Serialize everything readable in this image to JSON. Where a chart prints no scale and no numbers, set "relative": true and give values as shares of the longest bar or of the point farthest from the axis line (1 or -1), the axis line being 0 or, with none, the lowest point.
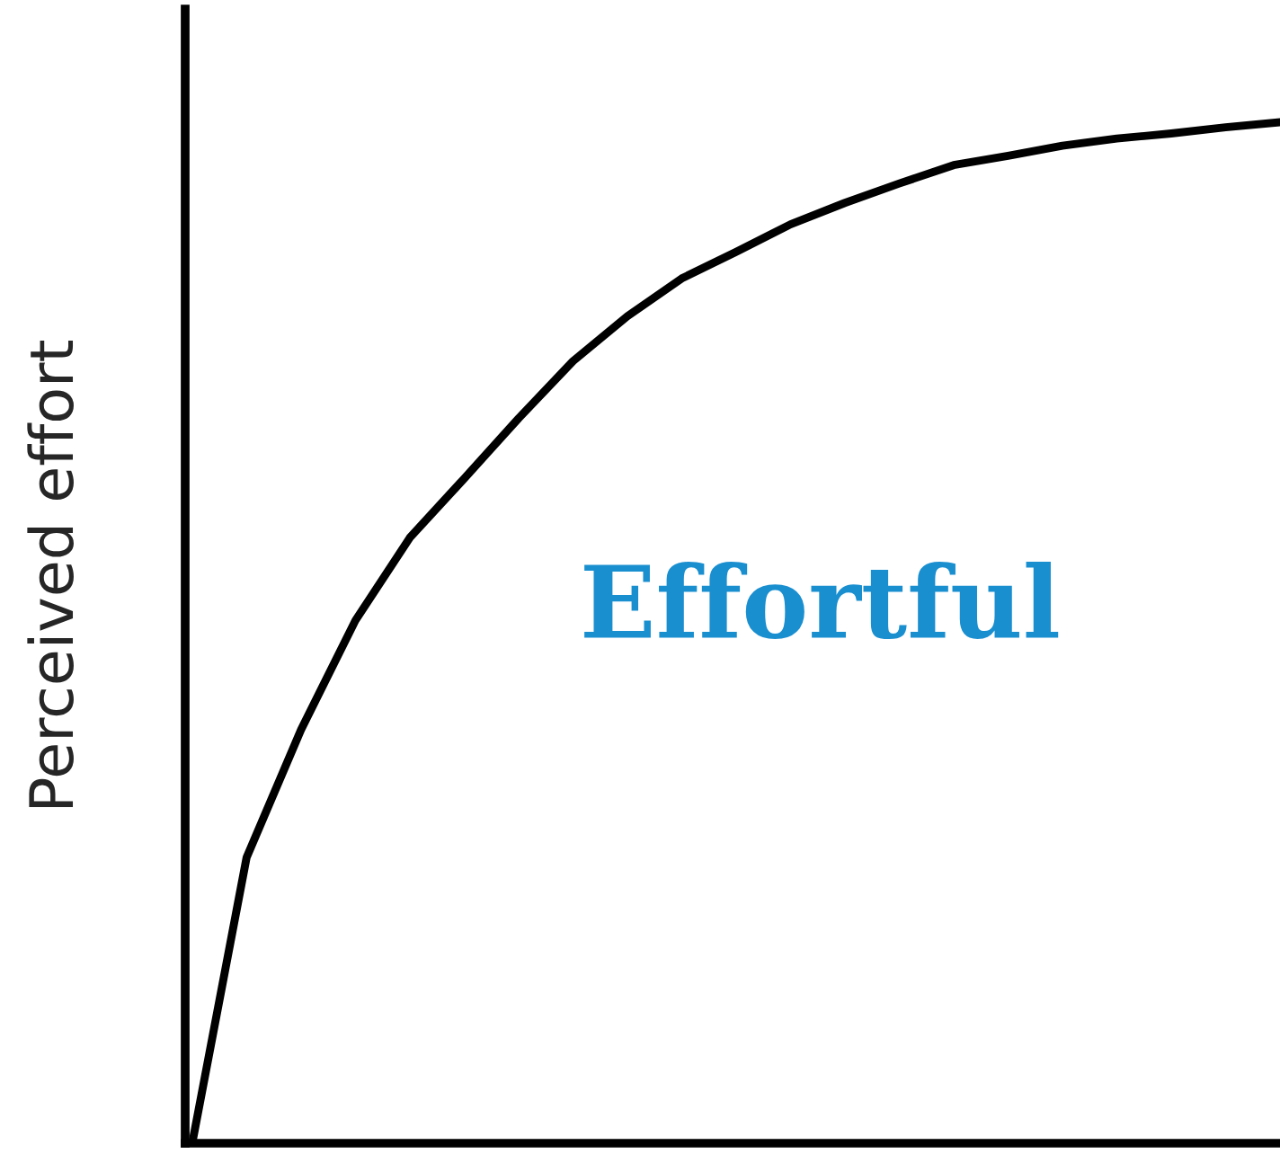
{
  "chart_data": {
    "type": "line",
    "relative": true,
    "ylabel": "Perceived effort",
    "annotations": [
      "Effortful"
    ],
    "categories": [
      null,
      null,
      null,
      null,
      null,
      null,
      null,
      null,
      null,
      null,
      null,
      null,
      null,
      null,
      null,
      null,
      null,
      null,
      null,
      null,
      null
    ],
    "series": [
      {
        "color": "#000000",
        "values": [
          0,
          0.28,
          0.405,
          0.512,
          0.593,
          0.651,
          0.71,
          0.766,
          0.81,
          0.847,
          0.873,
          0.9,
          0.921,
          0.94,
          0.958,
          0.967,
          0.977,
          0.984,
          0.989,
          0.995,
          1
        ]
      }
    ],
    "grid": false,
    "marker": "none",
    "line_style": "solid"
  }
}
